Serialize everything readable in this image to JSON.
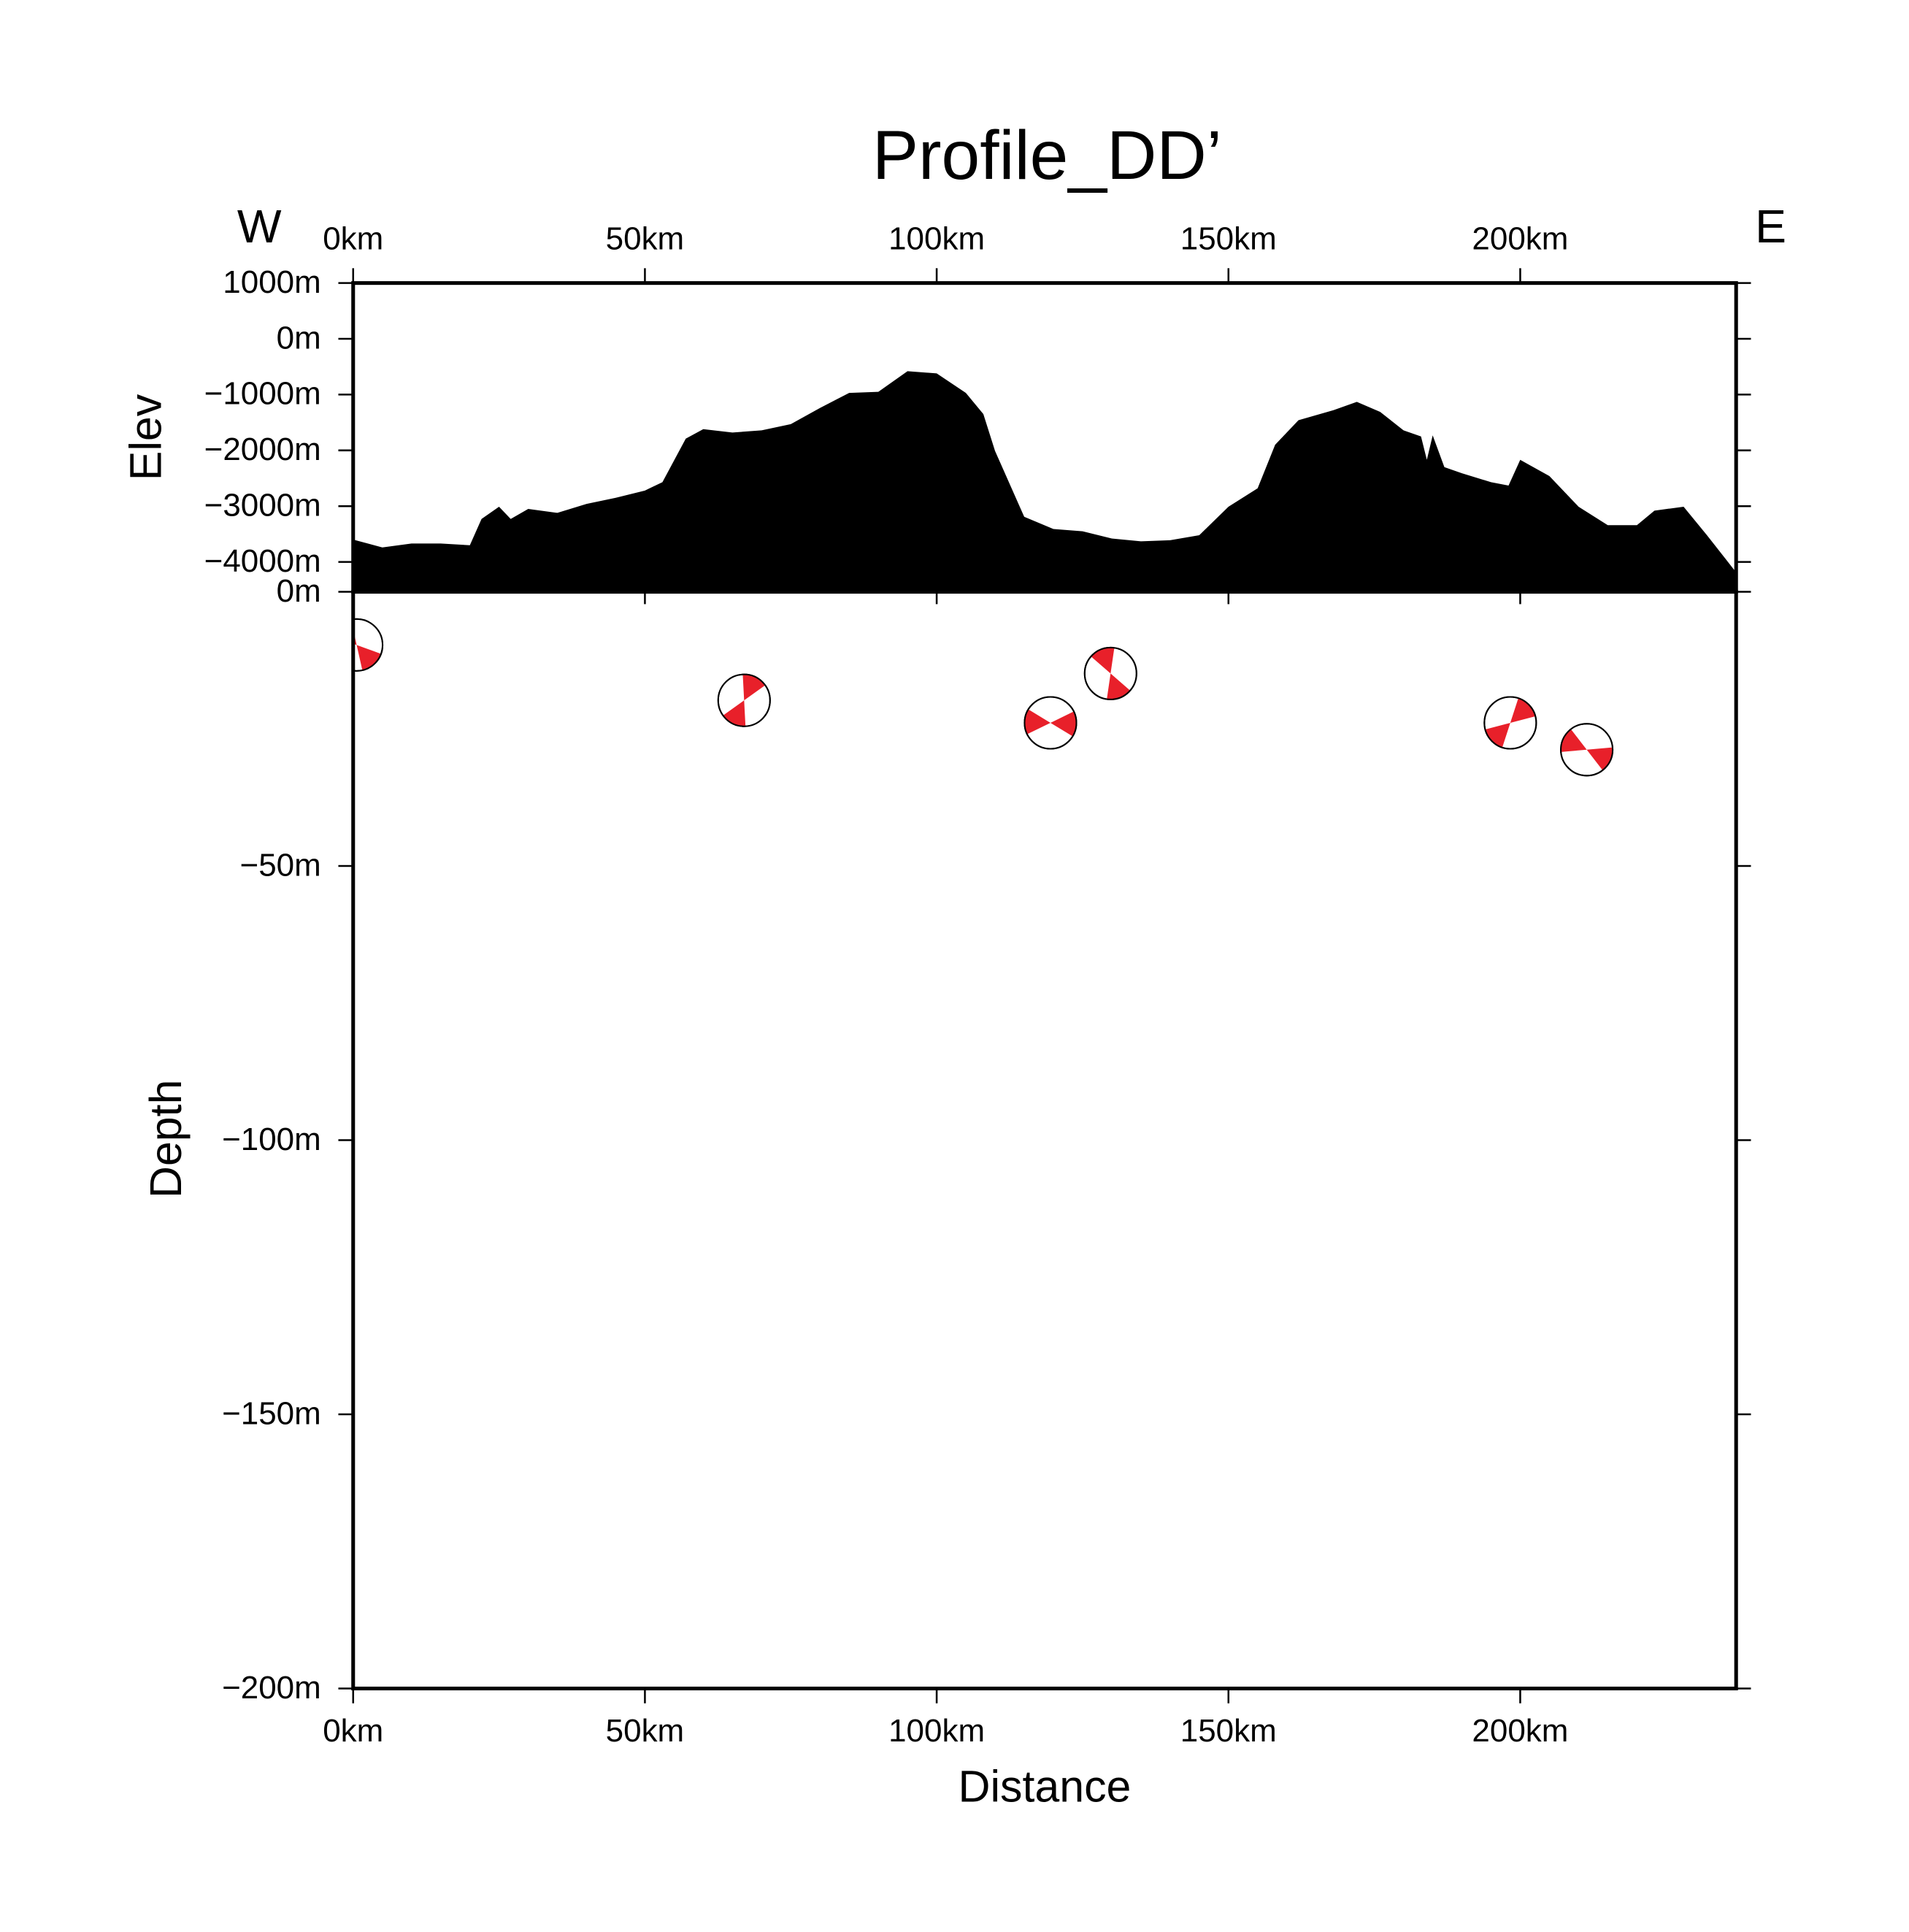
{
  "chart_data": [
    {
      "type": "area",
      "title": "Profile_DD’",
      "ylabel": "Elev",
      "annotations": [
        "W",
        "E"
      ],
      "color": "#000000",
      "x": [
        0,
        5,
        10,
        15,
        20,
        22,
        25,
        27,
        30,
        35,
        40,
        45,
        50,
        53,
        57,
        60,
        65,
        70,
        75,
        80,
        85,
        90,
        95,
        100,
        105,
        108,
        110,
        115,
        120,
        125,
        130,
        135,
        140,
        145,
        150,
        155,
        158,
        162,
        168,
        172,
        176,
        180,
        183,
        184,
        185,
        187,
        190,
        195,
        198,
        200,
        205,
        210,
        215,
        220,
        223,
        228,
        232,
        236.8
      ],
      "values": [
        -3600,
        -3740,
        -3670,
        -3670,
        -3700,
        -3230,
        -3010,
        -3230,
        -3050,
        -3120,
        -2960,
        -2850,
        -2720,
        -2570,
        -1790,
        -1620,
        -1680,
        -1640,
        -1530,
        -1240,
        -970,
        -950,
        -580,
        -620,
        -970,
        -1350,
        -2010,
        -3190,
        -3410,
        -3450,
        -3580,
        -3630,
        -3610,
        -3520,
        -3010,
        -2680,
        -1900,
        -1460,
        -1280,
        -1130,
        -1310,
        -1640,
        -1750,
        -2170,
        -1730,
        -2300,
        -2410,
        -2570,
        -2630,
        -2170,
        -2460,
        -3010,
        -3340,
        -3340,
        -3080,
        -3010,
        -3520,
        -4160
      ],
      "xlim": [
        0,
        237
      ],
      "ylim": [
        -4535,
        1000
      ],
      "xticks": [
        {
          "value": 0,
          "label": "0km"
        },
        {
          "value": 50,
          "label": "50km"
        },
        {
          "value": 100,
          "label": "100km"
        },
        {
          "value": 150,
          "label": "150km"
        },
        {
          "value": 200,
          "label": "200km"
        }
      ],
      "yticks": [
        {
          "value": 1000,
          "label": "1000m"
        },
        {
          "value": 0,
          "label": "0m"
        },
        {
          "value": -1000,
          "label": "−1000m"
        },
        {
          "value": -2000,
          "label": "−2000m"
        },
        {
          "value": -3000,
          "label": "−3000m"
        },
        {
          "value": -4000,
          "label": "−4000m"
        }
      ]
    },
    {
      "type": "scatter",
      "xlabel": "Distance",
      "ylabel": "Depth",
      "color": "#e8202a",
      "x": [
        0.6,
        67.0,
        119.5,
        129.8,
        198.3,
        211.4
      ],
      "y": [
        -9.7,
        -19.8,
        -23.9,
        -14.9,
        -23.9,
        -28.8
      ],
      "xlim": [
        0,
        237
      ],
      "ylim": [
        -200,
        0
      ],
      "xticks": [
        {
          "value": 0,
          "label": "0km"
        },
        {
          "value": 50,
          "label": "50km"
        },
        {
          "value": 100,
          "label": "100km"
        },
        {
          "value": 150,
          "label": "150km"
        },
        {
          "value": 200,
          "label": "200km"
        }
      ],
      "yticks": [
        {
          "value": 0,
          "label": "0m"
        },
        {
          "value": -50,
          "label": "−50m"
        },
        {
          "value": -100,
          "label": "−100m"
        },
        {
          "value": -150,
          "label": "−150m"
        },
        {
          "value": -200,
          "label": "−200m"
        }
      ]
    }
  ]
}
